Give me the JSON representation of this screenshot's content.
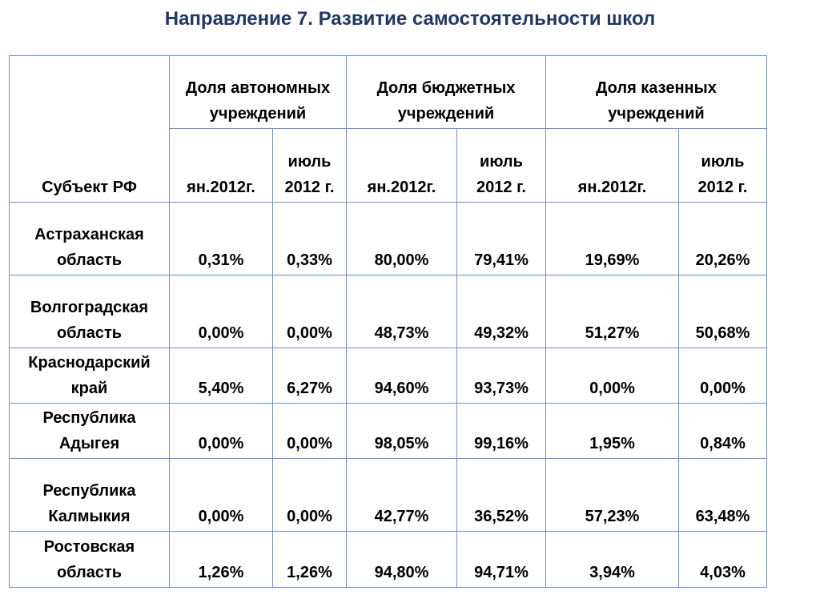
{
  "slide": {
    "title": "Направление 7.  Развитие самостоятельности школ"
  },
  "table": {
    "subject_header": "Субъект РФ",
    "groups": [
      {
        "line1": "Доля автономных",
        "line2": "учреждений"
      },
      {
        "line1": "Доля бюджетных",
        "line2": "учреждений"
      },
      {
        "line1": "Доля казенных",
        "line2": "учреждений"
      }
    ],
    "periods": [
      {
        "line1": "",
        "line2": "ян.2012г."
      },
      {
        "line1": "июль",
        "line2": "2012 г."
      },
      {
        "line1": "",
        "line2": "ян.2012г."
      },
      {
        "line1": "июль",
        "line2": "2012 г."
      },
      {
        "line1": "",
        "line2": "ян.2012г."
      },
      {
        "line1": "июль",
        "line2": "2012 г."
      }
    ],
    "rows": [
      {
        "region1": "Астраханская",
        "region2": "область",
        "values": [
          "0,31%",
          "0,33%",
          "80,00%",
          "79,41%",
          "19,69%",
          "20,26%"
        ]
      },
      {
        "region1": "Волгоградская",
        "region2": "область",
        "values": [
          "0,00%",
          "0,00%",
          "48,73%",
          "49,32%",
          "51,27%",
          "50,68%"
        ]
      },
      {
        "region1": "Краснодарский",
        "region2": "край",
        "values": [
          "5,40%",
          "6,27%",
          "94,60%",
          "93,73%",
          "0,00%",
          "0,00%"
        ]
      },
      {
        "region1": "Республика",
        "region2": "Адыгея",
        "values": [
          "0,00%",
          "0,00%",
          "98,05%",
          "99,16%",
          "1,95%",
          "0,84%"
        ]
      },
      {
        "region1": "Республика",
        "region2": "Калмыкия",
        "values": [
          "0,00%",
          "0,00%",
          "42,77%",
          "36,52%",
          "57,23%",
          "63,48%"
        ]
      },
      {
        "region1": "Ростовская",
        "region2": "область",
        "values": [
          "1,26%",
          "1,26%",
          "94,80%",
          "94,71%",
          "3,94%",
          "4,03%"
        ]
      }
    ]
  },
  "colors": {
    "title": "#1f3864",
    "border": "#6f8fc9"
  }
}
